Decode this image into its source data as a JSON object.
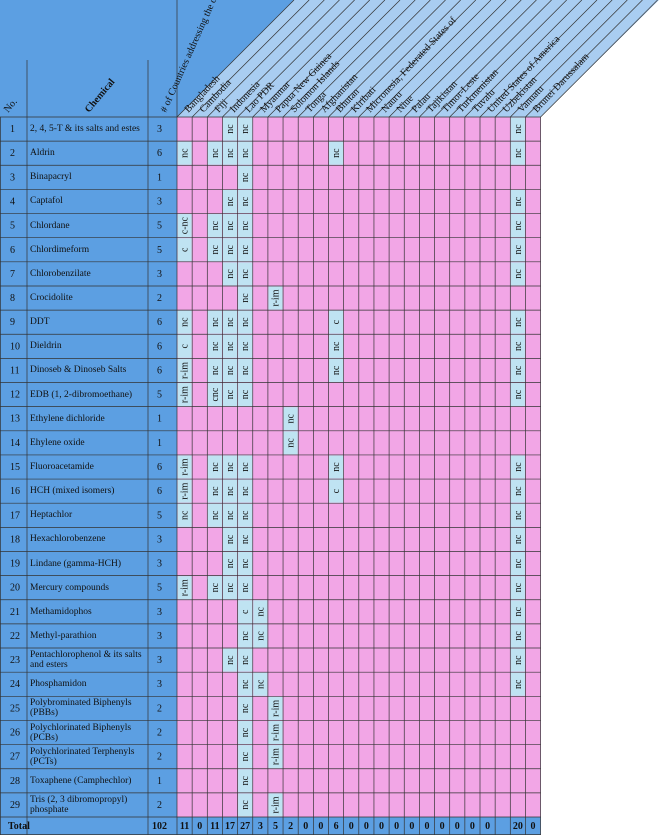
{
  "header": {
    "no": "No.",
    "chemical": "Chemical",
    "count": "# of Countries addressing the chemical",
    "countries": [
      "Bangladesh",
      "Cambodia",
      "Fiji",
      "Indonesia",
      "Lao PDR",
      "Myanmar",
      "Papua New Guinea",
      "Solomon Islands",
      "Tonga",
      "Afghanistan",
      "Bhutan",
      "Kiribati",
      "Micronesia, Federated States of",
      "Nauru",
      "Niue",
      "Palau",
      "Tajikistan",
      "Timor-Leste",
      "Turkmenistan",
      "Tuvalu",
      "United States of America",
      "Uzbekistan",
      "Vanuatu",
      "Brunei Darussalam"
    ]
  },
  "rows": [
    {
      "no": 1,
      "chemical": "2, 4, 5-T & its salts and estes",
      "count": 3,
      "cells": [
        null,
        null,
        null,
        "nc",
        "nc",
        null,
        null,
        null,
        null,
        null,
        null,
        null,
        null,
        null,
        null,
        null,
        null,
        null,
        null,
        null,
        null,
        null,
        "nc",
        null
      ]
    },
    {
      "no": 2,
      "chemical": "Aldrin",
      "count": 6,
      "cells": [
        "nc",
        null,
        "nc",
        "nc",
        "nc",
        null,
        null,
        null,
        null,
        null,
        "nc",
        null,
        null,
        null,
        null,
        null,
        null,
        null,
        null,
        null,
        null,
        null,
        "nc",
        null
      ]
    },
    {
      "no": 3,
      "chemical": "Binapacryl",
      "count": 1,
      "cells": [
        null,
        null,
        null,
        null,
        "nc",
        null,
        null,
        null,
        null,
        null,
        null,
        null,
        null,
        null,
        null,
        null,
        null,
        null,
        null,
        null,
        null,
        null,
        null,
        null
      ]
    },
    {
      "no": 4,
      "chemical": "Captafol",
      "count": 3,
      "cells": [
        null,
        null,
        null,
        "nc",
        "nc",
        null,
        null,
        null,
        null,
        null,
        null,
        null,
        null,
        null,
        null,
        null,
        null,
        null,
        null,
        null,
        null,
        null,
        "nc",
        null
      ]
    },
    {
      "no": 5,
      "chemical": "Chlordane",
      "count": 5,
      "cells": [
        "c-nc",
        null,
        "nc",
        "nc",
        "nc",
        null,
        null,
        null,
        null,
        null,
        null,
        null,
        null,
        null,
        null,
        null,
        null,
        null,
        null,
        null,
        null,
        null,
        "nc",
        null
      ]
    },
    {
      "no": 6,
      "chemical": "Chlordimeform",
      "count": 5,
      "cells": [
        "c",
        null,
        "nc",
        "nc",
        "nc",
        null,
        null,
        null,
        null,
        null,
        null,
        null,
        null,
        null,
        null,
        null,
        null,
        null,
        null,
        null,
        null,
        null,
        "nc",
        null
      ]
    },
    {
      "no": 7,
      "chemical": "Chlorobenzilate",
      "count": 3,
      "cells": [
        null,
        null,
        null,
        "nc",
        "nc",
        null,
        null,
        null,
        null,
        null,
        null,
        null,
        null,
        null,
        null,
        null,
        null,
        null,
        null,
        null,
        null,
        null,
        "nc",
        null
      ]
    },
    {
      "no": 8,
      "chemical": "Crocidolite",
      "count": 2,
      "cells": [
        null,
        null,
        null,
        null,
        "nc",
        null,
        "r-im",
        null,
        null,
        null,
        null,
        null,
        null,
        null,
        null,
        null,
        null,
        null,
        null,
        null,
        null,
        null,
        null,
        null
      ]
    },
    {
      "no": 9,
      "chemical": "DDT",
      "count": 6,
      "cells": [
        "nc",
        null,
        "nc",
        "nc",
        "nc",
        null,
        null,
        null,
        null,
        null,
        "c",
        null,
        null,
        null,
        null,
        null,
        null,
        null,
        null,
        null,
        null,
        null,
        "nc",
        null
      ]
    },
    {
      "no": 10,
      "chemical": "Dieldrin",
      "count": 6,
      "cells": [
        "c",
        null,
        "nc",
        "nc",
        "nc",
        null,
        null,
        null,
        null,
        null,
        "nc",
        null,
        null,
        null,
        null,
        null,
        null,
        null,
        null,
        null,
        null,
        null,
        "nc",
        null
      ]
    },
    {
      "no": 11,
      "chemical": "Dinoseb & Dinoseb Salts",
      "count": 6,
      "cells": [
        "r-im",
        null,
        "nc",
        "nc",
        "nc",
        null,
        null,
        null,
        null,
        null,
        "nc",
        null,
        null,
        null,
        null,
        null,
        null,
        null,
        null,
        null,
        null,
        null,
        "nc",
        null
      ]
    },
    {
      "no": 12,
      "chemical": "EDB (1, 2-dibromoethane)",
      "count": 5,
      "cells": [
        "r-im",
        null,
        "cnc",
        "nc",
        "nc",
        null,
        null,
        null,
        null,
        null,
        null,
        null,
        null,
        null,
        null,
        null,
        null,
        null,
        null,
        null,
        null,
        null,
        "nc",
        null
      ]
    },
    {
      "no": 13,
      "chemical": "Ethylene dichloride",
      "count": 1,
      "cells": [
        null,
        null,
        null,
        null,
        null,
        null,
        null,
        "nc",
        null,
        null,
        null,
        null,
        null,
        null,
        null,
        null,
        null,
        null,
        null,
        null,
        null,
        null,
        null,
        null
      ]
    },
    {
      "no": 14,
      "chemical": "Ehylene oxide",
      "count": 1,
      "cells": [
        null,
        null,
        null,
        null,
        null,
        null,
        null,
        "nc",
        null,
        null,
        null,
        null,
        null,
        null,
        null,
        null,
        null,
        null,
        null,
        null,
        null,
        null,
        null,
        null
      ]
    },
    {
      "no": 15,
      "chemical": "Fluoroacetamide",
      "count": 6,
      "cells": [
        "r-im",
        null,
        "nc",
        "nc",
        "nc",
        null,
        null,
        null,
        null,
        null,
        "nc",
        null,
        null,
        null,
        null,
        null,
        null,
        null,
        null,
        null,
        null,
        null,
        "nc",
        null
      ]
    },
    {
      "no": 16,
      "chemical": "HCH (mixed isomers)",
      "count": 6,
      "cells": [
        "r-im",
        null,
        "nc",
        "nc",
        "nc",
        null,
        null,
        null,
        null,
        null,
        "c",
        null,
        null,
        null,
        null,
        null,
        null,
        null,
        null,
        null,
        null,
        null,
        "nc",
        null
      ]
    },
    {
      "no": 17,
      "chemical": "Heptachlor",
      "count": 5,
      "cells": [
        "nc",
        null,
        "nc",
        "nc",
        "nc",
        null,
        null,
        null,
        null,
        null,
        null,
        null,
        null,
        null,
        null,
        null,
        null,
        null,
        null,
        null,
        null,
        null,
        "nc",
        null
      ]
    },
    {
      "no": 18,
      "chemical": "Hexachlorobenzene",
      "count": 3,
      "cells": [
        null,
        null,
        null,
        "nc",
        "nc",
        null,
        null,
        null,
        null,
        null,
        null,
        null,
        null,
        null,
        null,
        null,
        null,
        null,
        null,
        null,
        null,
        null,
        "nc",
        null
      ]
    },
    {
      "no": 19,
      "chemical": "Lindane (gamma-HCH)",
      "count": 3,
      "cells": [
        null,
        null,
        null,
        "nc",
        "nc",
        null,
        null,
        null,
        null,
        null,
        null,
        null,
        null,
        null,
        null,
        null,
        null,
        null,
        null,
        null,
        null,
        null,
        "nc",
        null
      ]
    },
    {
      "no": 20,
      "chemical": "Mercury compounds",
      "count": 5,
      "cells": [
        "r-im",
        null,
        "nc",
        "nc",
        "nc",
        null,
        null,
        null,
        null,
        null,
        null,
        null,
        null,
        null,
        null,
        null,
        null,
        null,
        null,
        null,
        null,
        null,
        "nc",
        null
      ]
    },
    {
      "no": 21,
      "chemical": "Methamidophos",
      "count": 3,
      "cells": [
        null,
        null,
        null,
        null,
        "c",
        "nc",
        null,
        null,
        null,
        null,
        null,
        null,
        null,
        null,
        null,
        null,
        null,
        null,
        null,
        null,
        null,
        null,
        "nc",
        null
      ]
    },
    {
      "no": 22,
      "chemical": "Methyl-parathion",
      "count": 3,
      "cells": [
        null,
        null,
        null,
        null,
        "nc",
        "nc",
        null,
        null,
        null,
        null,
        null,
        null,
        null,
        null,
        null,
        null,
        null,
        null,
        null,
        null,
        null,
        null,
        "nc",
        null
      ]
    },
    {
      "no": 23,
      "chemical": "Pentachlorophenol & its salts and esters",
      "count": 3,
      "cells": [
        null,
        null,
        null,
        "nc",
        "nc",
        null,
        null,
        null,
        null,
        null,
        null,
        null,
        null,
        null,
        null,
        null,
        null,
        null,
        null,
        null,
        null,
        null,
        "nc",
        null
      ]
    },
    {
      "no": 24,
      "chemical": "Phosphamidon",
      "count": 3,
      "cells": [
        null,
        null,
        null,
        null,
        "nc",
        "nc",
        null,
        null,
        null,
        null,
        null,
        null,
        null,
        null,
        null,
        null,
        null,
        null,
        null,
        null,
        null,
        null,
        "nc",
        null
      ]
    },
    {
      "no": 25,
      "chemical": "Polybrominated Biphenyls (PBBs)",
      "count": 2,
      "cells": [
        null,
        null,
        null,
        null,
        "nc",
        null,
        "r-im",
        null,
        null,
        null,
        null,
        null,
        null,
        null,
        null,
        null,
        null,
        null,
        null,
        null,
        null,
        null,
        null,
        null
      ]
    },
    {
      "no": 26,
      "chemical": "Polychlorinated Biphenyls (PCBs)",
      "count": 2,
      "cells": [
        null,
        null,
        null,
        null,
        "nc",
        null,
        "r-im",
        null,
        null,
        null,
        null,
        null,
        null,
        null,
        null,
        null,
        null,
        null,
        null,
        null,
        null,
        null,
        null,
        null
      ]
    },
    {
      "no": 27,
      "chemical": "Polychlorinated Terphenyls (PCTs)",
      "count": 2,
      "cells": [
        null,
        null,
        null,
        null,
        "nc",
        null,
        "r-im",
        null,
        null,
        null,
        null,
        null,
        null,
        null,
        null,
        null,
        null,
        null,
        null,
        null,
        null,
        null,
        null,
        null
      ]
    },
    {
      "no": 28,
      "chemical": "Toxaphene (Camphechlor)",
      "count": 1,
      "cells": [
        null,
        null,
        null,
        null,
        "nc",
        null,
        null,
        null,
        null,
        null,
        null,
        null,
        null,
        null,
        null,
        null,
        null,
        null,
        null,
        null,
        null,
        null,
        null,
        null
      ]
    },
    {
      "no": 29,
      "chemical": "Tris (2, 3 dibromopropyl) phosphate",
      "count": 2,
      "cells": [
        null,
        null,
        null,
        null,
        "nc",
        null,
        "r-im",
        null,
        null,
        null,
        null,
        null,
        null,
        null,
        null,
        null,
        null,
        null,
        null,
        null,
        null,
        null,
        null,
        null
      ]
    }
  ],
  "total": {
    "label": "Total",
    "count": 102,
    "cells": [
      11,
      0,
      11,
      17,
      27,
      3,
      5,
      2,
      0,
      0,
      6,
      0,
      0,
      0,
      0,
      0,
      0,
      0,
      0,
      0,
      0,
      null,
      20,
      0
    ]
  }
}
